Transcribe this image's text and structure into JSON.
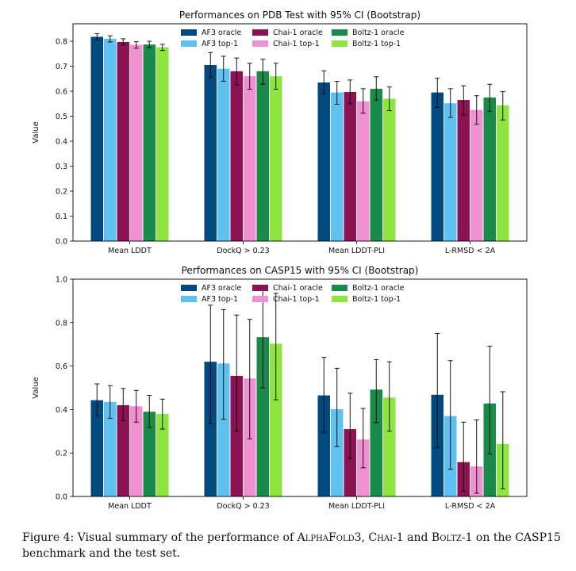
{
  "figure": {
    "series": [
      {
        "name": "AF3 oracle",
        "color": "#004a80"
      },
      {
        "name": "AF3 top-1",
        "color": "#5ec1f2"
      },
      {
        "name": "Chai-1 oracle",
        "color": "#8b1253"
      },
      {
        "name": "Chai-1 top-1",
        "color": "#f090d0"
      },
      {
        "name": "Boltz-1 oracle",
        "color": "#1a8a4a"
      },
      {
        "name": "Boltz-1 top-1",
        "color": "#8ee53f"
      }
    ]
  },
  "chart_data": [
    {
      "type": "bar",
      "title": "Performances on PDB Test with 95% CI (Bootstrap)",
      "ylabel": "Value",
      "xlabel": "",
      "ylim": [
        0,
        0.87
      ],
      "yticks": [
        0.0,
        0.1,
        0.2,
        0.3,
        0.4,
        0.5,
        0.6,
        0.7,
        0.8
      ],
      "ytick_labels": [
        "0.0",
        "0.1",
        "0.2",
        "0.3",
        "0.4",
        "0.5",
        "0.6",
        "0.7",
        "0.8"
      ],
      "legend": "upper-center, 3 columns",
      "categories": [
        "Mean LDDT",
        "DockQ > 0.23",
        "Mean LDDT-PLI",
        "L-RMSD < 2A"
      ],
      "series": [
        {
          "name": "AF3 oracle",
          "values": [
            0.818,
            0.705,
            0.635,
            0.595
          ],
          "ci_low": [
            0.805,
            0.655,
            0.59,
            0.535
          ],
          "ci_high": [
            0.83,
            0.755,
            0.682,
            0.652
          ]
        },
        {
          "name": "AF3 top-1",
          "values": [
            0.81,
            0.69,
            0.595,
            0.552
          ],
          "ci_low": [
            0.797,
            0.64,
            0.548,
            0.495
          ],
          "ci_high": [
            0.822,
            0.74,
            0.64,
            0.61
          ]
        },
        {
          "name": "Chai-1 oracle",
          "values": [
            0.797,
            0.68,
            0.597,
            0.565
          ],
          "ci_low": [
            0.785,
            0.625,
            0.55,
            0.505
          ],
          "ci_high": [
            0.81,
            0.733,
            0.645,
            0.622
          ]
        },
        {
          "name": "Chai-1 top-1",
          "values": [
            0.786,
            0.66,
            0.56,
            0.525
          ],
          "ci_low": [
            0.772,
            0.608,
            0.512,
            0.468
          ],
          "ci_high": [
            0.798,
            0.712,
            0.61,
            0.582
          ]
        },
        {
          "name": "Boltz-1 oracle",
          "values": [
            0.787,
            0.68,
            0.61,
            0.575
          ],
          "ci_low": [
            0.775,
            0.628,
            0.565,
            0.52
          ],
          "ci_high": [
            0.8,
            0.728,
            0.658,
            0.628
          ]
        },
        {
          "name": "Boltz-1 top-1",
          "values": [
            0.776,
            0.66,
            0.57,
            0.543
          ],
          "ci_low": [
            0.763,
            0.608,
            0.522,
            0.485
          ],
          "ci_high": [
            0.788,
            0.712,
            0.617,
            0.598
          ]
        }
      ]
    },
    {
      "type": "bar",
      "title": "Performances on CASP15 with 95% CI (Bootstrap)",
      "ylabel": "Value",
      "xlabel": "",
      "ylim": [
        0,
        1.0
      ],
      "yticks": [
        0.0,
        0.2,
        0.4,
        0.6,
        0.8,
        1.0
      ],
      "ytick_labels": [
        "0.0",
        "0.2",
        "0.4",
        "0.6",
        "0.8",
        "1.0"
      ],
      "legend": "upper-center, 3 columns",
      "categories": [
        "Mean LDDT",
        "DockQ > 0.23",
        "Mean LDDT-PLI",
        "L-RMSD < 2A"
      ],
      "series": [
        {
          "name": "AF3 oracle",
          "values": [
            0.443,
            0.62,
            0.465,
            0.468
          ],
          "ci_low": [
            0.37,
            0.335,
            0.295,
            0.225
          ],
          "ci_high": [
            0.518,
            0.88,
            0.64,
            0.75
          ]
        },
        {
          "name": "AF3 top-1",
          "values": [
            0.435,
            0.612,
            0.402,
            0.37
          ],
          "ci_low": [
            0.36,
            0.355,
            0.23,
            0.125
          ],
          "ci_high": [
            0.51,
            0.86,
            0.59,
            0.625
          ]
        },
        {
          "name": "Chai-1 oracle",
          "values": [
            0.42,
            0.555,
            0.31,
            0.158
          ],
          "ci_low": [
            0.348,
            0.3,
            0.175,
            0.025
          ],
          "ci_high": [
            0.497,
            0.835,
            0.475,
            0.342
          ]
        },
        {
          "name": "Chai-1 top-1",
          "values": [
            0.415,
            0.543,
            0.262,
            0.138
          ],
          "ci_low": [
            0.342,
            0.265,
            0.132,
            0.015
          ],
          "ci_high": [
            0.488,
            0.815,
            0.405,
            0.352
          ]
        },
        {
          "name": "Boltz-1 oracle",
          "values": [
            0.39,
            0.733,
            0.492,
            0.428
          ],
          "ci_low": [
            0.318,
            0.5,
            0.34,
            0.195
          ],
          "ci_high": [
            0.465,
            0.96,
            0.63,
            0.692
          ]
        },
        {
          "name": "Boltz-1 top-1",
          "values": [
            0.38,
            0.703,
            0.455,
            0.242
          ],
          "ci_low": [
            0.31,
            0.445,
            0.3,
            0.035
          ],
          "ci_high": [
            0.448,
            0.935,
            0.62,
            0.482
          ]
        }
      ]
    }
  ],
  "caption": {
    "prefix": "Figure 4:   Visual summary of the performance of ",
    "name1": "AlphaFold",
    "name1_suffix": "3, ",
    "name2": "Chai",
    "name2_suffix": "-1 and ",
    "name3": "Boltz",
    "suffix": "-1 on the CASP15 benchmark and the test set."
  }
}
